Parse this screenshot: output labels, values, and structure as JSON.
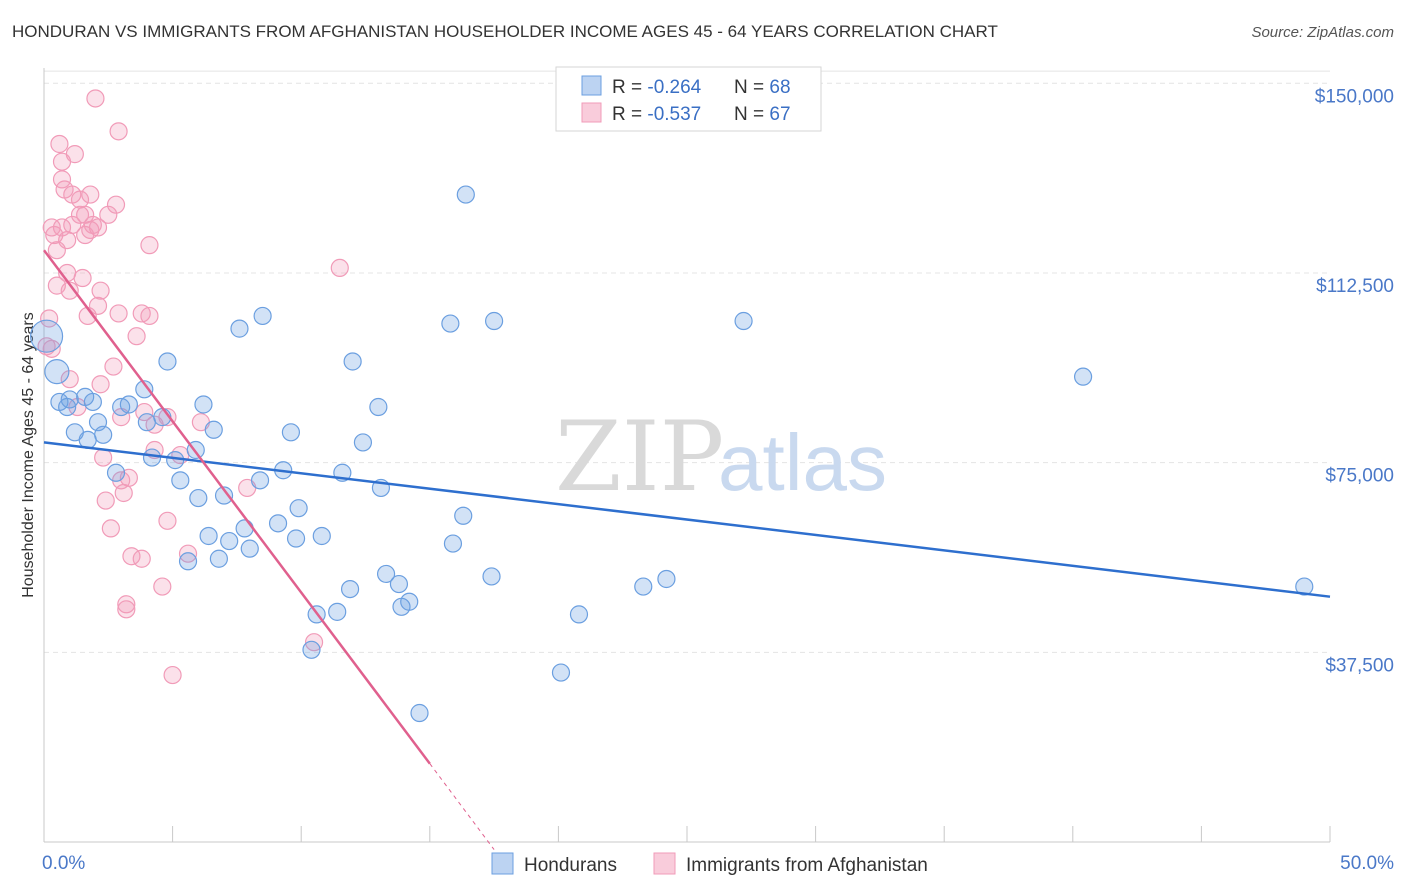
{
  "chart_data": {
    "type": "scatter",
    "title": "HONDURAN VS IMMIGRANTS FROM AFGHANISTAN HOUSEHOLDER INCOME AGES 45 - 64 YEARS CORRELATION CHART",
    "source": "Source: ZipAtlas.com",
    "xlabel": "",
    "ylabel": "Householder Income Ages 45 - 64 years",
    "xlim": [
      0,
      50
    ],
    "ylim": [
      0,
      155000
    ],
    "x_tick_labels": [
      "0.0%",
      "50.0%"
    ],
    "y_ticks": [
      37500,
      75000,
      112500,
      150000
    ],
    "y_tick_labels": [
      "$37,500",
      "$75,000",
      "$112,500",
      "$150,000"
    ],
    "grid": true,
    "watermark": {
      "zip": "ZIP",
      "atlas": "atlas"
    },
    "legend_position": "top-center",
    "colors": {
      "hondurans": "#6b9fe0",
      "afghanistan": "#f19bb8",
      "hondurans_line": "#2e6fce",
      "afghanistan_line": "#e0608e",
      "tick_text": "#4a78c8"
    },
    "stats": [
      {
        "r_label": "R = ",
        "r_value": "-0.264",
        "n_label": "N = ",
        "n_value": "68"
      },
      {
        "r_label": "R = ",
        "r_value": "-0.537",
        "n_label": "N = ",
        "n_value": "67"
      }
    ],
    "series": [
      {
        "name": "Hondurans",
        "trend": {
          "x": [
            0,
            50
          ],
          "y": [
            79000,
            48500
          ]
        },
        "points": [
          [
            0.1,
            100000
          ],
          [
            0.5,
            93000
          ],
          [
            0.6,
            87000
          ],
          [
            0.9,
            86000
          ],
          [
            1.0,
            87500
          ],
          [
            1.2,
            81000
          ],
          [
            1.6,
            88000
          ],
          [
            1.7,
            79500
          ],
          [
            1.9,
            87000
          ],
          [
            2.1,
            83000
          ],
          [
            2.3,
            80500
          ],
          [
            2.8,
            73000
          ],
          [
            3.0,
            86000
          ],
          [
            3.3,
            86500
          ],
          [
            3.9,
            89500
          ],
          [
            4.0,
            83000
          ],
          [
            4.2,
            76000
          ],
          [
            4.6,
            84000
          ],
          [
            4.8,
            95000
          ],
          [
            5.1,
            75500
          ],
          [
            5.3,
            71500
          ],
          [
            5.6,
            55500
          ],
          [
            5.9,
            77500
          ],
          [
            6.2,
            86500
          ],
          [
            6.4,
            60500
          ],
          [
            6.6,
            81500
          ],
          [
            6.8,
            56000
          ],
          [
            7.0,
            68500
          ],
          [
            7.2,
            59500
          ],
          [
            7.6,
            101500
          ],
          [
            7.8,
            62000
          ],
          [
            8.0,
            58000
          ],
          [
            8.4,
            71500
          ],
          [
            8.5,
            104000
          ],
          [
            9.1,
            63000
          ],
          [
            9.3,
            73500
          ],
          [
            9.6,
            81000
          ],
          [
            9.8,
            60000
          ],
          [
            9.9,
            66000
          ],
          [
            10.6,
            45000
          ],
          [
            10.8,
            60500
          ],
          [
            11.4,
            45500
          ],
          [
            11.6,
            73000
          ],
          [
            11.9,
            50000
          ],
          [
            12.0,
            95000
          ],
          [
            12.4,
            79000
          ],
          [
            13.0,
            86000
          ],
          [
            13.1,
            70000
          ],
          [
            13.3,
            53000
          ],
          [
            13.8,
            51000
          ],
          [
            13.9,
            46500
          ],
          [
            14.2,
            47500
          ],
          [
            14.6,
            25500
          ],
          [
            15.8,
            102500
          ],
          [
            15.9,
            59000
          ],
          [
            16.3,
            64500
          ],
          [
            16.4,
            128000
          ],
          [
            17.4,
            52500
          ],
          [
            17.5,
            103000
          ],
          [
            20.1,
            33500
          ],
          [
            20.8,
            45000
          ],
          [
            23.3,
            50500
          ],
          [
            24.2,
            52000
          ],
          [
            27.2,
            103000
          ],
          [
            40.4,
            92000
          ],
          [
            49.0,
            50500
          ],
          [
            10.4,
            38000
          ],
          [
            6.0,
            68000
          ]
        ]
      },
      {
        "name": "Immigrants from Afghanistan",
        "trend": {
          "x": [
            0,
            15.0
          ],
          "y": [
            117000,
            15500
          ]
        },
        "trend_dashed": {
          "x": [
            15.0,
            17.5
          ],
          "y": [
            15500,
            -1500
          ]
        },
        "points": [
          [
            0.1,
            98000
          ],
          [
            0.2,
            103500
          ],
          [
            0.3,
            97500
          ],
          [
            0.3,
            121500
          ],
          [
            0.4,
            120000
          ],
          [
            0.5,
            117000
          ],
          [
            0.5,
            110000
          ],
          [
            0.6,
            138000
          ],
          [
            0.7,
            131000
          ],
          [
            0.7,
            134500
          ],
          [
            0.7,
            121500
          ],
          [
            0.8,
            129000
          ],
          [
            0.9,
            119000
          ],
          [
            0.9,
            112500
          ],
          [
            1.0,
            109000
          ],
          [
            1.0,
            91500
          ],
          [
            1.1,
            128000
          ],
          [
            1.1,
            122000
          ],
          [
            1.2,
            136000
          ],
          [
            1.3,
            86000
          ],
          [
            1.4,
            127000
          ],
          [
            1.4,
            124000
          ],
          [
            1.5,
            111500
          ],
          [
            1.6,
            124000
          ],
          [
            1.6,
            120000
          ],
          [
            1.7,
            104000
          ],
          [
            1.8,
            128000
          ],
          [
            1.8,
            121000
          ],
          [
            1.9,
            122000
          ],
          [
            2.0,
            147000
          ],
          [
            2.1,
            106000
          ],
          [
            2.1,
            121500
          ],
          [
            2.2,
            109000
          ],
          [
            2.2,
            90500
          ],
          [
            2.3,
            76000
          ],
          [
            2.4,
            67500
          ],
          [
            2.5,
            124000
          ],
          [
            2.6,
            62000
          ],
          [
            2.7,
            94000
          ],
          [
            2.8,
            126000
          ],
          [
            2.9,
            140500
          ],
          [
            2.9,
            104500
          ],
          [
            3.0,
            84000
          ],
          [
            3.0,
            71500
          ],
          [
            3.1,
            69000
          ],
          [
            3.2,
            47000
          ],
          [
            3.2,
            46000
          ],
          [
            3.3,
            72000
          ],
          [
            3.4,
            56500
          ],
          [
            3.6,
            100000
          ],
          [
            3.8,
            104500
          ],
          [
            3.8,
            56000
          ],
          [
            3.9,
            85000
          ],
          [
            4.1,
            118000
          ],
          [
            4.1,
            104000
          ],
          [
            4.3,
            77500
          ],
          [
            4.3,
            82500
          ],
          [
            4.6,
            50500
          ],
          [
            4.8,
            63500
          ],
          [
            4.8,
            84000
          ],
          [
            5.0,
            33000
          ],
          [
            5.3,
            76500
          ],
          [
            5.6,
            57000
          ],
          [
            6.1,
            83000
          ],
          [
            7.9,
            70000
          ],
          [
            10.5,
            39500
          ],
          [
            11.5,
            113500
          ]
        ]
      }
    ]
  }
}
